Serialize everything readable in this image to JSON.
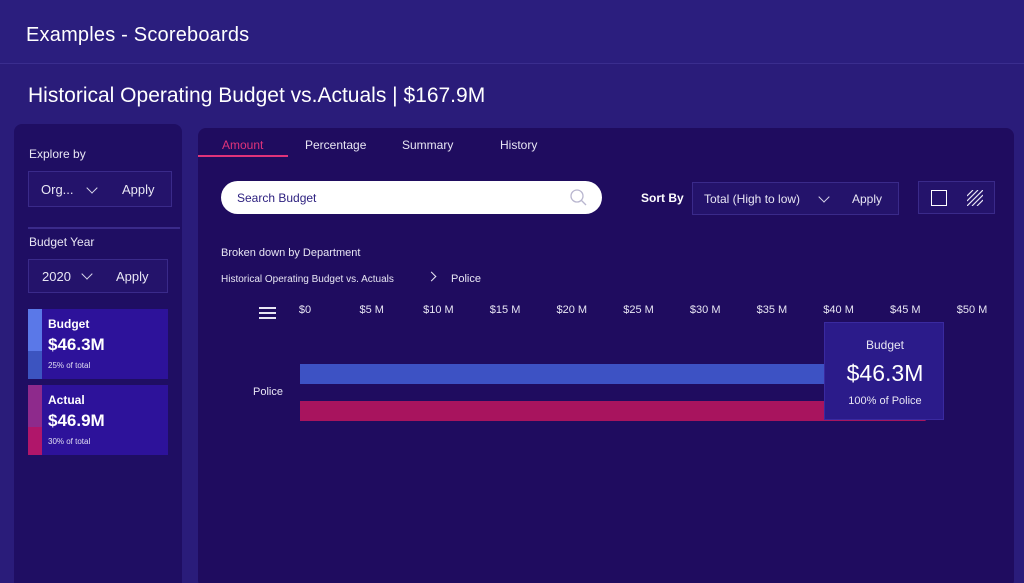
{
  "app": {
    "title": "Examples - Scoreboards"
  },
  "page": {
    "title": "Historical Operating Budget vs.Actuals | $167.9M"
  },
  "left": {
    "explore_label": "Explore by",
    "explore_value": "Org...",
    "explore_apply": "Apply",
    "year_label": "Budget Year",
    "year_value": "2020",
    "year_apply": "Apply",
    "kpis": [
      {
        "title": "Budget",
        "value": "$46.3M",
        "sub": "25% of total",
        "color_top": "#5a78e8",
        "color_bottom": "#3c54c0"
      },
      {
        "title": "Actual",
        "value": "$46.9M",
        "sub": "30% of total",
        "color_top": "#8e2a8c",
        "color_bottom": "#b0166a"
      }
    ]
  },
  "tabs": [
    {
      "label": "Amount",
      "active": true
    },
    {
      "label": "Percentage",
      "active": false
    },
    {
      "label": "Summary",
      "active": false
    },
    {
      "label": "History",
      "active": false
    }
  ],
  "search": {
    "placeholder": "Search Budget"
  },
  "sort": {
    "label": "Sort By",
    "value": "Total (High to low)",
    "apply": "Apply"
  },
  "breakdown": "Broken down by Department",
  "breadcrumb": [
    "Historical Operating Budget vs. Actuals",
    "Police"
  ],
  "colors": {
    "budget": "#3d52c4",
    "actual": "#a8145e",
    "accent": "#e0337a"
  },
  "chart_data": {
    "type": "bar",
    "orientation": "horizontal",
    "categories": [
      "Police"
    ],
    "series": [
      {
        "name": "Budget",
        "values": [
          46.3
        ]
      },
      {
        "name": "Actual",
        "values": [
          46.9
        ]
      }
    ],
    "x_ticks": [
      "$0",
      "$5 M",
      "$10 M",
      "$15 M",
      "$20 M",
      "$25 M",
      "$30 M",
      "$35 M",
      "$40 M",
      "$45 M",
      "$50 M"
    ],
    "xlim": [
      0,
      50
    ],
    "x_unit": "$M",
    "grid": false,
    "tooltip": {
      "title": "Budget",
      "value": "$46.3M",
      "sub": "100% of Police"
    }
  }
}
